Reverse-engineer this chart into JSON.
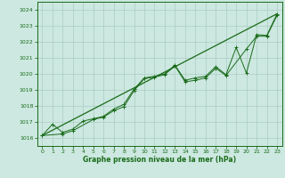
{
  "title": "Graphe pression niveau de la mer (hPa)",
  "background_color": "#cce8e0",
  "grid_color": "#aaccc4",
  "line_color": "#1a6b1a",
  "xlim": [
    -0.5,
    23.5
  ],
  "ylim": [
    1015.5,
    1024.5
  ],
  "yticks": [
    1016,
    1017,
    1018,
    1019,
    1020,
    1021,
    1022,
    1023,
    1024
  ],
  "xticks": [
    0,
    1,
    2,
    3,
    4,
    5,
    6,
    7,
    8,
    9,
    10,
    11,
    12,
    13,
    14,
    15,
    16,
    17,
    18,
    19,
    20,
    21,
    22,
    23
  ],
  "series1_x": [
    0,
    1,
    2,
    3,
    4,
    5,
    6,
    7,
    8,
    9,
    10,
    11,
    12,
    13,
    14,
    15,
    16,
    17,
    18,
    19,
    20,
    21,
    22,
    23
  ],
  "series1_y": [
    1016.15,
    1016.85,
    1016.35,
    1016.55,
    1017.05,
    1017.2,
    1017.35,
    1017.8,
    1018.1,
    1019.05,
    1019.75,
    1019.85,
    1020.0,
    1020.55,
    1019.6,
    1019.75,
    1019.85,
    1020.45,
    1019.95,
    1021.65,
    1020.05,
    1022.45,
    1022.4,
    1023.75
  ],
  "series2_x": [
    0,
    2,
    3,
    5,
    6,
    7,
    8,
    9,
    10,
    11,
    12,
    13,
    14,
    15,
    16,
    17,
    18,
    20,
    21,
    22,
    23
  ],
  "series2_y": [
    1016.15,
    1016.25,
    1016.45,
    1017.15,
    1017.3,
    1017.7,
    1017.95,
    1018.95,
    1019.7,
    1019.8,
    1019.95,
    1020.5,
    1019.5,
    1019.6,
    1019.75,
    1020.35,
    1019.9,
    1021.55,
    1022.35,
    1022.35,
    1023.65
  ],
  "trend_x": [
    0,
    23
  ],
  "trend_y": [
    1016.15,
    1023.75
  ]
}
